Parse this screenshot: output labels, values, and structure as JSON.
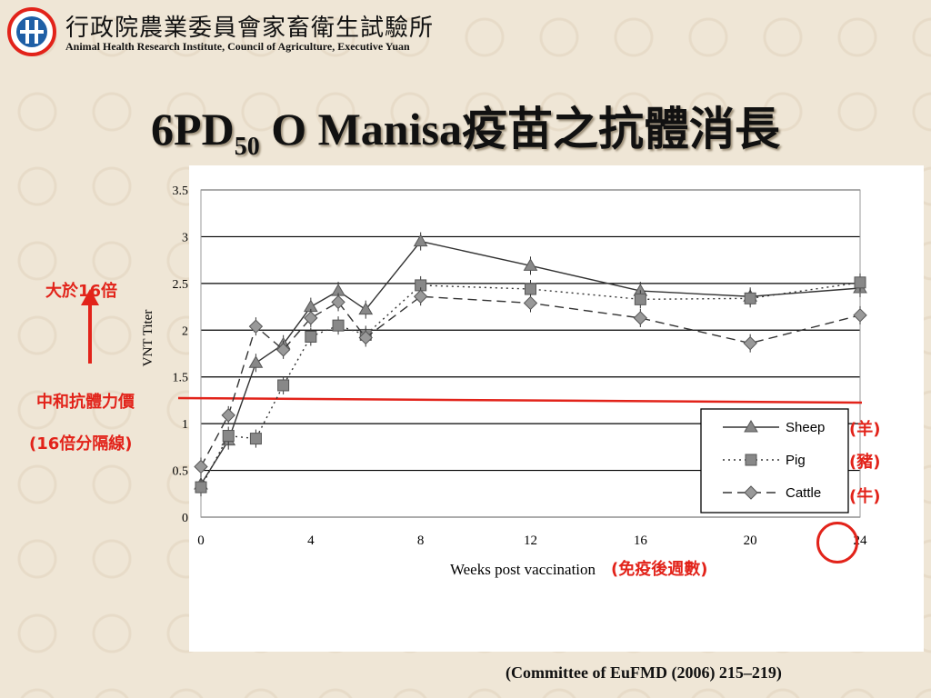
{
  "header": {
    "institute_zh": "行政院農業委員會家畜衛生試驗所",
    "institute_en": "Animal Health Research Institute, Council of Agriculture, Executive Yuan",
    "logo_icon": "tahri-logo-icon"
  },
  "slide": {
    "title_main": "6PD",
    "title_sub": "50",
    "title_rest": " O Manisa疫苗之抗體消長",
    "citation": "(Committee of EuFMD (2006) 215–219)"
  },
  "annotations": {
    "above16": "大於16倍",
    "threshold_line1": "中和抗體力價",
    "threshold_line2": "(16倍分隔線)",
    "sheep_zh": "(羊)",
    "pig_zh": "(豬)",
    "cattle_zh": "(牛)",
    "weeks_zh": "(免疫後週數)",
    "accent_color": "#e2231a"
  },
  "chart_data": {
    "type": "line",
    "xlabel": "Weeks post vaccination",
    "ylabel": "VNT Titer",
    "xlim": [
      0,
      24
    ],
    "ylim": [
      0,
      3.5
    ],
    "xticks": [
      0,
      4,
      8,
      12,
      16,
      20,
      24
    ],
    "yticks": [
      "0",
      "0.5",
      "1",
      "1.5",
      "2",
      "2.5",
      "3",
      "3.5"
    ],
    "grid": "horizontal",
    "legend_position": "bottom-right",
    "threshold_line": 1.25,
    "series": [
      {
        "name": "Sheep",
        "marker": "triangle",
        "dash": "solid",
        "x": [
          0,
          1,
          2,
          3,
          4,
          5,
          6,
          8,
          12,
          16,
          20,
          24
        ],
        "y": [
          0.35,
          0.82,
          1.65,
          1.85,
          2.25,
          2.42,
          2.22,
          2.95,
          2.69,
          2.42,
          2.36,
          2.45
        ]
      },
      {
        "name": "Pig",
        "marker": "square",
        "dash": "dotted",
        "x": [
          0,
          1,
          2,
          3,
          4,
          5,
          6,
          8,
          12,
          16,
          20,
          24
        ],
        "y": [
          0.32,
          0.87,
          0.84,
          1.41,
          1.93,
          2.05,
          1.95,
          2.48,
          2.44,
          2.33,
          2.34,
          2.51
        ]
      },
      {
        "name": "Cattle",
        "marker": "diamond",
        "dash": "dashed",
        "x": [
          0,
          1,
          2,
          3,
          4,
          5,
          6,
          8,
          12,
          16,
          20,
          24
        ],
        "y": [
          0.54,
          1.09,
          2.04,
          1.79,
          2.13,
          2.3,
          1.92,
          2.36,
          2.29,
          2.13,
          1.86,
          2.16
        ]
      }
    ]
  }
}
